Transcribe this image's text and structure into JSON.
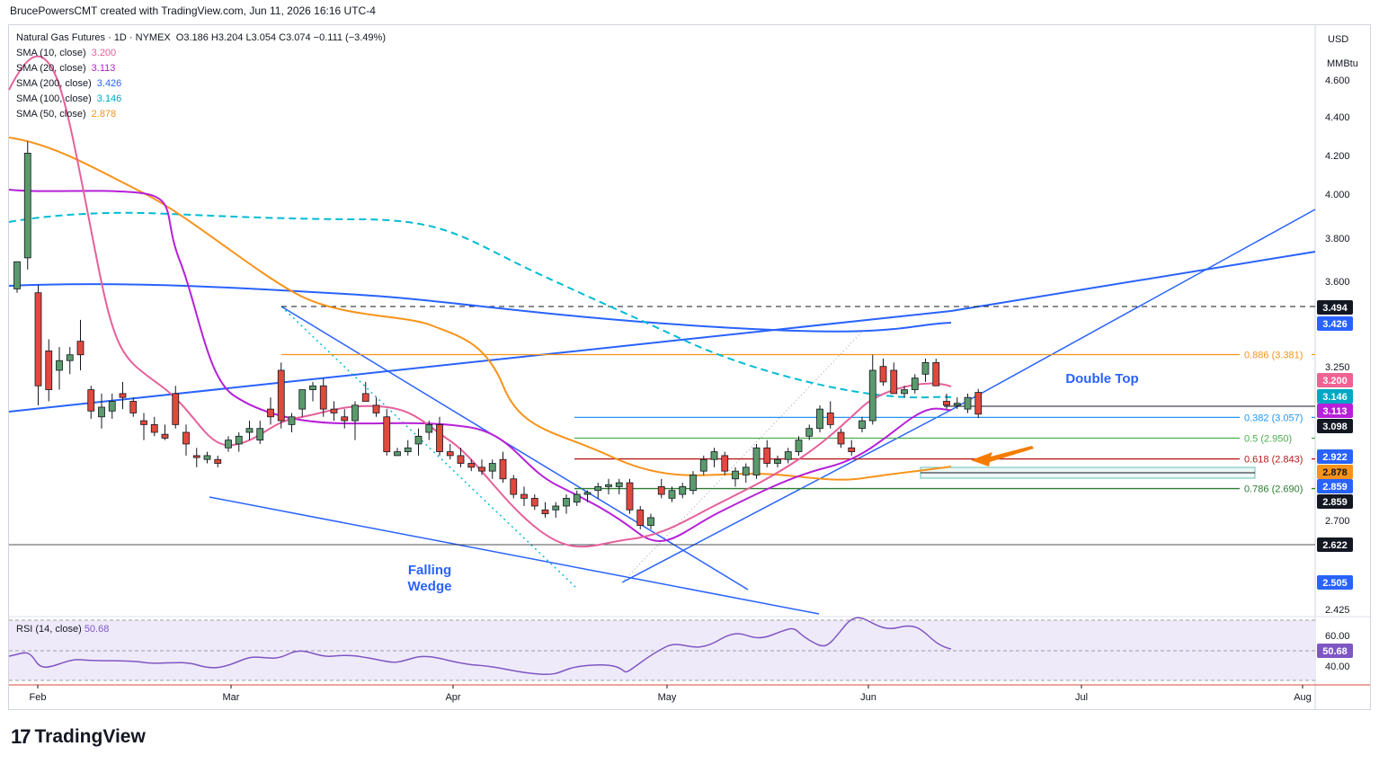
{
  "header": {
    "credit": "BrucePowersCMT created with TradingView.com, Jun 11, 2026 16:16 UTC-4"
  },
  "legend": {
    "symbol_line": "Natural Gas Futures · 1D · NYMEX",
    "ohlc": "O3.186 H3.204 L3.054 C3.074 −0.111 (−3.49%)",
    "smas": [
      {
        "label": "SMA (10, close)",
        "value": "3.200",
        "color": "#e5609a"
      },
      {
        "label": "SMA (20, close)",
        "value": "3.113",
        "color": "#b620d9"
      },
      {
        "label": "SMA (200, close)",
        "value": "3.426",
        "color": "#2962ff"
      },
      {
        "label": "SMA (100, close)",
        "value": "3.146",
        "color": "#00a7c4"
      },
      {
        "label": "SMA (50, close)",
        "value": "2.878",
        "color": "#f7931a"
      }
    ]
  },
  "rsi_legend": {
    "label": "RSI (14, close)",
    "value": "50.68"
  },
  "axis": {
    "currency": "USD",
    "unit": "MMBtu",
    "price_ticks": [
      "4.600",
      "4.400",
      "4.200",
      "4.000",
      "3.800",
      "3.600",
      "3.250",
      "2.700",
      "2.425"
    ],
    "rsi_ticks": [
      "60.00",
      "40.00"
    ],
    "months": [
      "Feb",
      "Mar",
      "Apr",
      "May",
      "Jun",
      "Jul",
      "Aug"
    ]
  },
  "price_tags": [
    {
      "value": "3.494",
      "bg": "#131722",
      "fg": "#ffffff"
    },
    {
      "value": "3.426",
      "bg": "#2962ff",
      "fg": "#ffffff"
    },
    {
      "value": "3.200",
      "bg": "#f06292",
      "fg": "#ffffff"
    },
    {
      "value": "3.146",
      "bg": "#00a7c4",
      "fg": "#ffffff"
    },
    {
      "value": "3.113",
      "bg": "#b620d9",
      "fg": "#ffffff"
    },
    {
      "value": "3.098",
      "bg": "#131722",
      "fg": "#ffffff"
    },
    {
      "value": "2.922",
      "bg": "#2962ff",
      "fg": "#ffffff"
    },
    {
      "value": "2.878",
      "bg": "#f7931a",
      "fg": "#131722"
    },
    {
      "value": "2.859",
      "bg": "#2962ff",
      "fg": "#ffffff"
    },
    {
      "value": "2.859",
      "bg": "#131722",
      "fg": "#ffffff"
    },
    {
      "value": "2.622",
      "bg": "#131722",
      "fg": "#ffffff"
    },
    {
      "value": "2.505",
      "bg": "#2962ff",
      "fg": "#ffffff"
    },
    {
      "value": "50.68",
      "bg": "#7e57c2",
      "fg": "#ffffff"
    }
  ],
  "fib_levels": [
    {
      "label": "0.886 (3.381)",
      "price": 3.381,
      "color": "#f7931a"
    },
    {
      "label": "0.382 (3.057)",
      "price": 3.057,
      "color": "#2196f3"
    },
    {
      "label": "0.5 (2.950)",
      "price": 2.95,
      "color": "#4caf50"
    },
    {
      "label": "0.618 (2.843)",
      "price": 2.843,
      "color": "#b71c1c"
    },
    {
      "label": "0.786 (2.690)",
      "price": 2.69,
      "color": "#2e7d32"
    }
  ],
  "annotations": {
    "double_top": "Double Top",
    "falling": "Falling",
    "wedge": "Wedge"
  },
  "colors": {
    "up": "#5b9a6b",
    "down": "#e0493d",
    "rsi": "#7e57c2",
    "rsi_band": "#efeafa"
  },
  "footer": {
    "brand": "TradingView"
  },
  "chart_data": {
    "type": "candlestick",
    "title": "Natural Gas Futures · 1D · NYMEX",
    "ylim": [
      2.4,
      4.72
    ],
    "x_months": [
      "Feb",
      "Mar",
      "Apr",
      "May",
      "Jun",
      "Jul",
      "Aug"
    ],
    "candles": [
      [
        3.72,
        3.86,
        3.7,
        3.86
      ],
      [
        3.88,
        4.48,
        3.82,
        4.42
      ],
      [
        3.7,
        3.74,
        3.12,
        3.22
      ],
      [
        3.4,
        3.46,
        3.14,
        3.2
      ],
      [
        3.3,
        3.42,
        3.2,
        3.35
      ],
      [
        3.35,
        3.42,
        3.28,
        3.38
      ],
      [
        3.45,
        3.56,
        3.3,
        3.38
      ],
      [
        3.2,
        3.22,
        3.05,
        3.09
      ],
      [
        3.06,
        3.18,
        3.0,
        3.11
      ],
      [
        3.09,
        3.18,
        3.05,
        3.14
      ],
      [
        3.18,
        3.24,
        3.1,
        3.16
      ],
      [
        3.14,
        3.16,
        3.06,
        3.08
      ],
      [
        3.04,
        3.08,
        2.94,
        3.02
      ],
      [
        3.02,
        3.06,
        2.96,
        2.98
      ],
      [
        2.97,
        3.02,
        2.94,
        2.95
      ],
      [
        3.18,
        3.22,
        3.0,
        3.02
      ],
      [
        2.98,
        3.02,
        2.86,
        2.92
      ],
      [
        2.86,
        2.9,
        2.8,
        2.85
      ],
      [
        2.84,
        2.88,
        2.82,
        2.86
      ],
      [
        2.84,
        2.86,
        2.8,
        2.82
      ],
      [
        2.9,
        2.96,
        2.88,
        2.94
      ],
      [
        2.92,
        2.98,
        2.88,
        2.96
      ],
      [
        2.98,
        3.04,
        2.94,
        3.0
      ],
      [
        2.94,
        3.04,
        2.92,
        3.0
      ],
      [
        3.1,
        3.16,
        3.02,
        3.06
      ],
      [
        3.3,
        3.34,
        3.0,
        3.04
      ],
      [
        3.02,
        3.08,
        2.98,
        3.06
      ],
      [
        3.1,
        3.2,
        3.06,
        3.2
      ],
      [
        3.2,
        3.24,
        3.14,
        3.22
      ],
      [
        3.22,
        3.26,
        3.06,
        3.1
      ],
      [
        3.1,
        3.14,
        3.04,
        3.08
      ],
      [
        3.06,
        3.1,
        3.0,
        3.04
      ],
      [
        3.04,
        3.14,
        2.94,
        3.12
      ],
      [
        3.18,
        3.24,
        3.14,
        3.14
      ],
      [
        3.12,
        3.16,
        3.06,
        3.08
      ],
      [
        3.06,
        3.1,
        2.86,
        2.88
      ],
      [
        2.86,
        2.9,
        2.86,
        2.88
      ],
      [
        2.88,
        2.94,
        2.86,
        2.9
      ],
      [
        2.92,
        3.0,
        2.86,
        2.96
      ],
      [
        2.98,
        3.04,
        2.94,
        3.02
      ],
      [
        3.02,
        3.06,
        2.86,
        2.88
      ],
      [
        2.88,
        2.92,
        2.84,
        2.86
      ],
      [
        2.86,
        2.9,
        2.8,
        2.82
      ],
      [
        2.82,
        2.84,
        2.78,
        2.8
      ],
      [
        2.8,
        2.84,
        2.76,
        2.78
      ],
      [
        2.78,
        2.84,
        2.74,
        2.82
      ],
      [
        2.84,
        2.88,
        2.72,
        2.74
      ],
      [
        2.74,
        2.76,
        2.64,
        2.66
      ],
      [
        2.66,
        2.7,
        2.6,
        2.64
      ],
      [
        2.64,
        2.66,
        2.58,
        2.6
      ],
      [
        2.58,
        2.62,
        2.54,
        2.56
      ],
      [
        2.58,
        2.62,
        2.54,
        2.6
      ],
      [
        2.6,
        2.66,
        2.56,
        2.64
      ],
      [
        2.62,
        2.68,
        2.6,
        2.66
      ],
      [
        2.66,
        2.68,
        2.62,
        2.67
      ],
      [
        2.68,
        2.72,
        2.64,
        2.7
      ],
      [
        2.7,
        2.74,
        2.66,
        2.71
      ],
      [
        2.7,
        2.74,
        2.66,
        2.72
      ],
      [
        2.72,
        2.74,
        2.56,
        2.58
      ],
      [
        2.58,
        2.6,
        2.48,
        2.5
      ],
      [
        2.5,
        2.56,
        2.48,
        2.54
      ],
      [
        2.7,
        2.74,
        2.64,
        2.66
      ],
      [
        2.64,
        2.7,
        2.62,
        2.68
      ],
      [
        2.66,
        2.72,
        2.64,
        2.7
      ],
      [
        2.68,
        2.78,
        2.66,
        2.76
      ],
      [
        2.78,
        2.86,
        2.76,
        2.84
      ],
      [
        2.84,
        2.9,
        2.8,
        2.88
      ],
      [
        2.86,
        2.88,
        2.76,
        2.78
      ],
      [
        2.74,
        2.8,
        2.7,
        2.78
      ],
      [
        2.76,
        2.82,
        2.72,
        2.8
      ],
      [
        2.76,
        2.92,
        2.74,
        2.9
      ],
      [
        2.9,
        2.94,
        2.8,
        2.82
      ],
      [
        2.82,
        2.86,
        2.8,
        2.84
      ],
      [
        2.84,
        2.9,
        2.82,
        2.88
      ],
      [
        2.88,
        2.96,
        2.86,
        2.94
      ],
      [
        2.96,
        3.02,
        2.94,
        3.0
      ],
      [
        3.0,
        3.12,
        2.98,
        3.1
      ],
      [
        3.08,
        3.14,
        3.0,
        3.02
      ],
      [
        2.98,
        3.0,
        2.9,
        2.92
      ],
      [
        2.9,
        2.94,
        2.86,
        2.88
      ],
      [
        3.0,
        3.06,
        2.98,
        3.04
      ],
      [
        3.04,
        3.38,
        3.02,
        3.3
      ],
      [
        3.32,
        3.36,
        3.22,
        3.24
      ],
      [
        3.3,
        3.34,
        3.18,
        3.18
      ],
      [
        3.18,
        3.22,
        3.16,
        3.2
      ],
      [
        3.2,
        3.28,
        3.18,
        3.26
      ],
      [
        3.28,
        3.36,
        3.24,
        3.34
      ],
      [
        3.34,
        3.36,
        3.22,
        3.22
      ],
      [
        3.14,
        3.18,
        3.1,
        3.12
      ],
      [
        3.12,
        3.16,
        3.1,
        3.13
      ],
      [
        3.1,
        3.18,
        3.08,
        3.16
      ],
      [
        3.186,
        3.204,
        3.054,
        3.074
      ]
    ],
    "rsi": {
      "label": "RSI (14, close)",
      "current": 50.68,
      "ticks": [
        60,
        40
      ]
    }
  }
}
